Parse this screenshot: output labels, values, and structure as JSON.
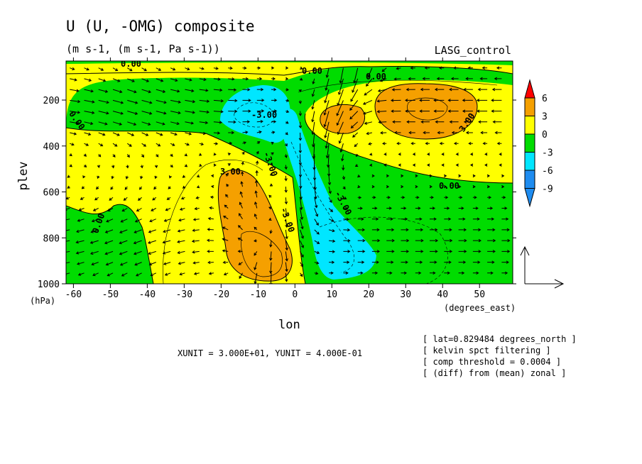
{
  "chart_data": {
    "type": "heatmap",
    "title": "U (U, -OMG) composite",
    "subtitle": "(m s-1, (m s-1, Pa s-1))",
    "experiment": "LASG_control",
    "xlabel": "lon",
    "ylabel": "plev",
    "x_unit_label": "(degrees_east)",
    "y_unit_label": "(hPa)",
    "xlim": [
      -62,
      59
    ],
    "ylim": [
      1000,
      30
    ],
    "x_ticks": [
      -60,
      -50,
      -40,
      -30,
      -20,
      -10,
      0,
      10,
      20,
      30,
      40,
      50
    ],
    "y_ticks": [
      200,
      400,
      600,
      800,
      1000
    ],
    "colorbar": {
      "levels": [
        -9,
        -6,
        -3,
        0,
        3,
        6
      ],
      "colors": [
        "#1e8cf0",
        "#1e8cf0",
        "#00e6ff",
        "#00dc00",
        "#ffff00",
        "#f5a000",
        "#ff0000",
        "#ff0000"
      ]
    },
    "contour_labels": [
      "0.00",
      "0.00",
      "0.00",
      "3.00",
      "3.00",
      "0.00",
      "0.00",
      "-3.00",
      "-3.00",
      "-3.00",
      "-3.00",
      "0.00"
    ],
    "vector_unit": {
      "xunit": "3.000E+01",
      "yunit": "4.000E-01"
    },
    "vector_unit_text": "XUNIT = 3.000E+01, YUNIT = 4.000E-01",
    "notes": [
      "[ lat=0.829484 degrees_north ]",
      "[ kelvin spct filtering ]",
      "[ comp threshold = 0.0004 ]",
      "[ (diff) from (mean) zonal ]"
    ]
  }
}
